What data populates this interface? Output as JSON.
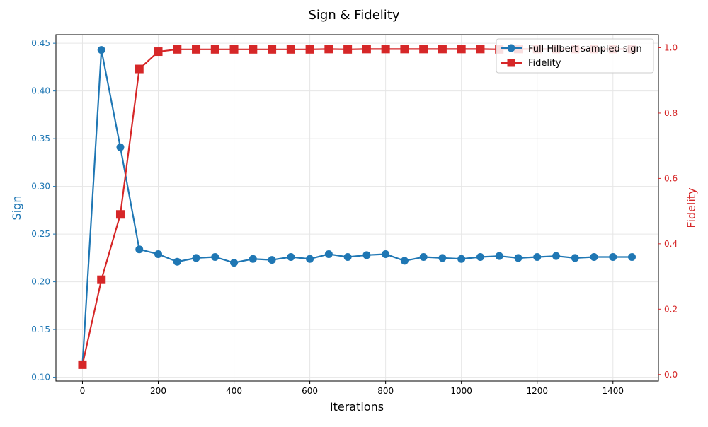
{
  "chart_data": {
    "type": "line",
    "title": "Sign & Fidelity",
    "xlabel": "Iterations",
    "ylabel_left": "Sign",
    "ylabel_right": "Fidelity",
    "xlim": [
      -70,
      1520
    ],
    "ylim_left": [
      0.096,
      0.459
    ],
    "ylim_right": [
      -0.02,
      1.04
    ],
    "x_ticks": [
      0,
      200,
      400,
      600,
      800,
      1000,
      1200,
      1400
    ],
    "x_tick_labels": [
      "0",
      "200",
      "400",
      "600",
      "800",
      "1000",
      "1200",
      "1400"
    ],
    "y_left_ticks": [
      0.1,
      0.15,
      0.2,
      0.25,
      0.3,
      0.35,
      0.4,
      0.45
    ],
    "y_left_tick_labels": [
      "0.10",
      "0.15",
      "0.20",
      "0.25",
      "0.30",
      "0.35",
      "0.40",
      "0.45"
    ],
    "y_right_ticks": [
      0.0,
      0.2,
      0.4,
      0.6,
      0.8,
      1.0
    ],
    "y_right_tick_labels": [
      "0.0",
      "0.2",
      "0.4",
      "0.6",
      "0.8",
      "1.0"
    ],
    "grid": true,
    "legend_position": "top-right",
    "x": [
      0,
      50,
      100,
      150,
      200,
      250,
      300,
      350,
      400,
      450,
      500,
      550,
      600,
      650,
      700,
      750,
      800,
      850,
      900,
      950,
      1000,
      1050,
      1100,
      1150,
      1200,
      1250,
      1300,
      1350,
      1400,
      1450
    ],
    "series": [
      {
        "name": "Full Hilbert sampled sign",
        "axis": "left",
        "color": "#1f77b4",
        "marker": "circle",
        "values": [
          0.113,
          0.443,
          0.341,
          0.234,
          0.229,
          0.221,
          0.225,
          0.226,
          0.22,
          0.224,
          0.223,
          0.226,
          0.224,
          0.229,
          0.226,
          0.228,
          0.229,
          0.222,
          0.226,
          0.225,
          0.224,
          0.226,
          0.227,
          0.225,
          0.226,
          0.227,
          0.225,
          0.226,
          0.226,
          0.226
        ]
      },
      {
        "name": "Fidelity",
        "axis": "right",
        "color": "#d62728",
        "marker": "square",
        "values": [
          0.03,
          0.29,
          0.49,
          0.935,
          0.988,
          0.995,
          0.995,
          0.995,
          0.995,
          0.995,
          0.995,
          0.995,
          0.995,
          0.996,
          0.995,
          0.996,
          0.996,
          0.996,
          0.996,
          0.996,
          0.996,
          0.996,
          0.995,
          0.996,
          0.996,
          0.996,
          0.996,
          0.996,
          0.996,
          0.996
        ]
      }
    ]
  }
}
